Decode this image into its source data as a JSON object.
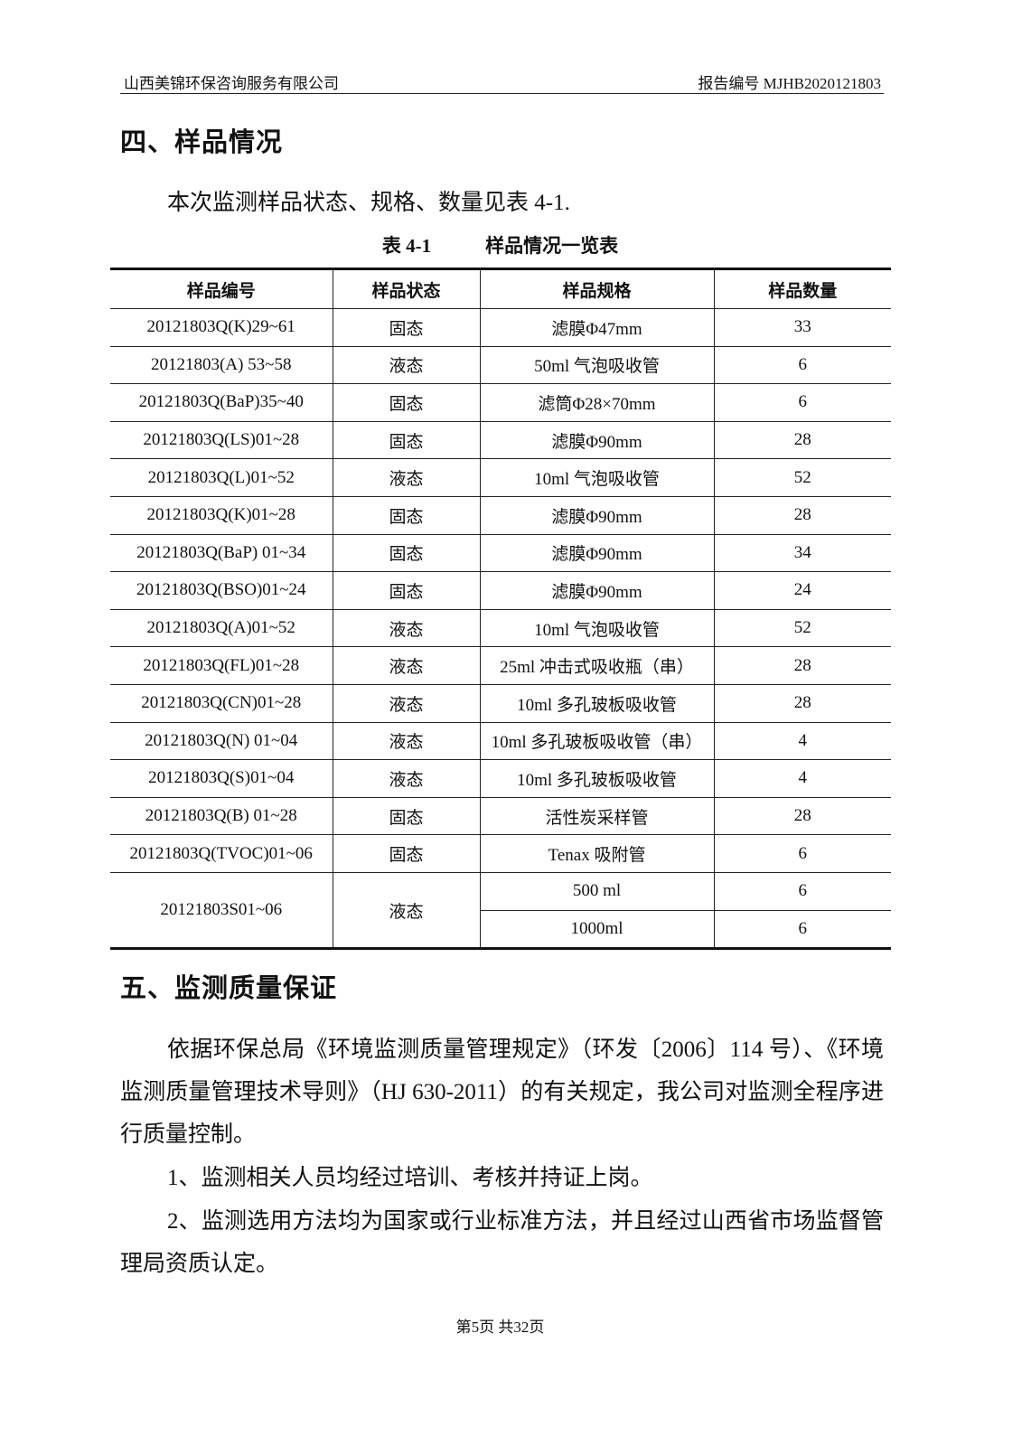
{
  "header": {
    "company": "山西美锦环保咨询服务有限公司",
    "report_no": "报告编号 MJHB2020121803"
  },
  "section4": {
    "title": "四、样品情况",
    "intro": "本次监测样品状态、规格、数量见表 4-1."
  },
  "table": {
    "caption_no": "表 4-1",
    "caption": "样品情况一览表",
    "header": [
      "样品编号",
      "样品状态",
      "样品规格",
      "样品数量"
    ],
    "rows": [
      [
        "20121803Q(K)29~61",
        "固态",
        "滤膜Φ47mm",
        "33"
      ],
      [
        "20121803(A) 53~58",
        "液态",
        "50ml 气泡吸收管",
        "6"
      ],
      [
        "20121803Q(BaP)35~40",
        "固态",
        "滤筒Φ28×70mm",
        "6"
      ],
      [
        "20121803Q(LS)01~28",
        "固态",
        "滤膜Φ90mm",
        "28"
      ],
      [
        "20121803Q(L)01~52",
        "液态",
        "10ml 气泡吸收管",
        "52"
      ],
      [
        "20121803Q(K)01~28",
        "固态",
        "滤膜Φ90mm",
        "28"
      ],
      [
        "20121803Q(BaP) 01~34",
        "固态",
        "滤膜Φ90mm",
        "34"
      ],
      [
        "20121803Q(BSO)01~24",
        "固态",
        "滤膜Φ90mm",
        "24"
      ],
      [
        "20121803Q(A)01~52",
        "液态",
        "10ml 气泡吸收管",
        "52"
      ],
      [
        "20121803Q(FL)01~28",
        "液态",
        "25ml 冲击式吸收瓶（串）",
        "28"
      ],
      [
        "20121803Q(CN)01~28",
        "液态",
        "10ml 多孔玻板吸收管",
        "28"
      ],
      [
        "20121803Q(N) 01~04",
        "液态",
        "10ml 多孔玻板吸收管（串）",
        "4"
      ],
      [
        "20121803Q(S)01~04",
        "液态",
        "10ml 多孔玻板吸收管",
        "4"
      ],
      [
        "20121803Q(B) 01~28",
        "固态",
        "活性炭采样管",
        "28"
      ],
      [
        "20121803Q(TVOC)01~06",
        "固态",
        "Tenax 吸附管",
        "6"
      ]
    ],
    "merged_row": {
      "id": "20121803S01~06",
      "state": "液态",
      "items": [
        [
          "500 ml",
          "6"
        ],
        [
          "1000ml",
          "6"
        ]
      ]
    }
  },
  "section5": {
    "title": "五、监测质量保证",
    "paragraphs": [
      "依据环保总局《环境监测质量管理规定》（环发〔2006〕114 号）、《环境监测质量管理技术导则》（HJ 630-2011）的有关规定，我公司对监测全程序进行质量控制。",
      "1、监测相关人员均经过培训、考核并持证上岗。",
      "2、监测选用方法均为国家或行业标准方法，并且经过山西省市场监督管理局资质认定。"
    ]
  },
  "footer": "第5页  共32页"
}
